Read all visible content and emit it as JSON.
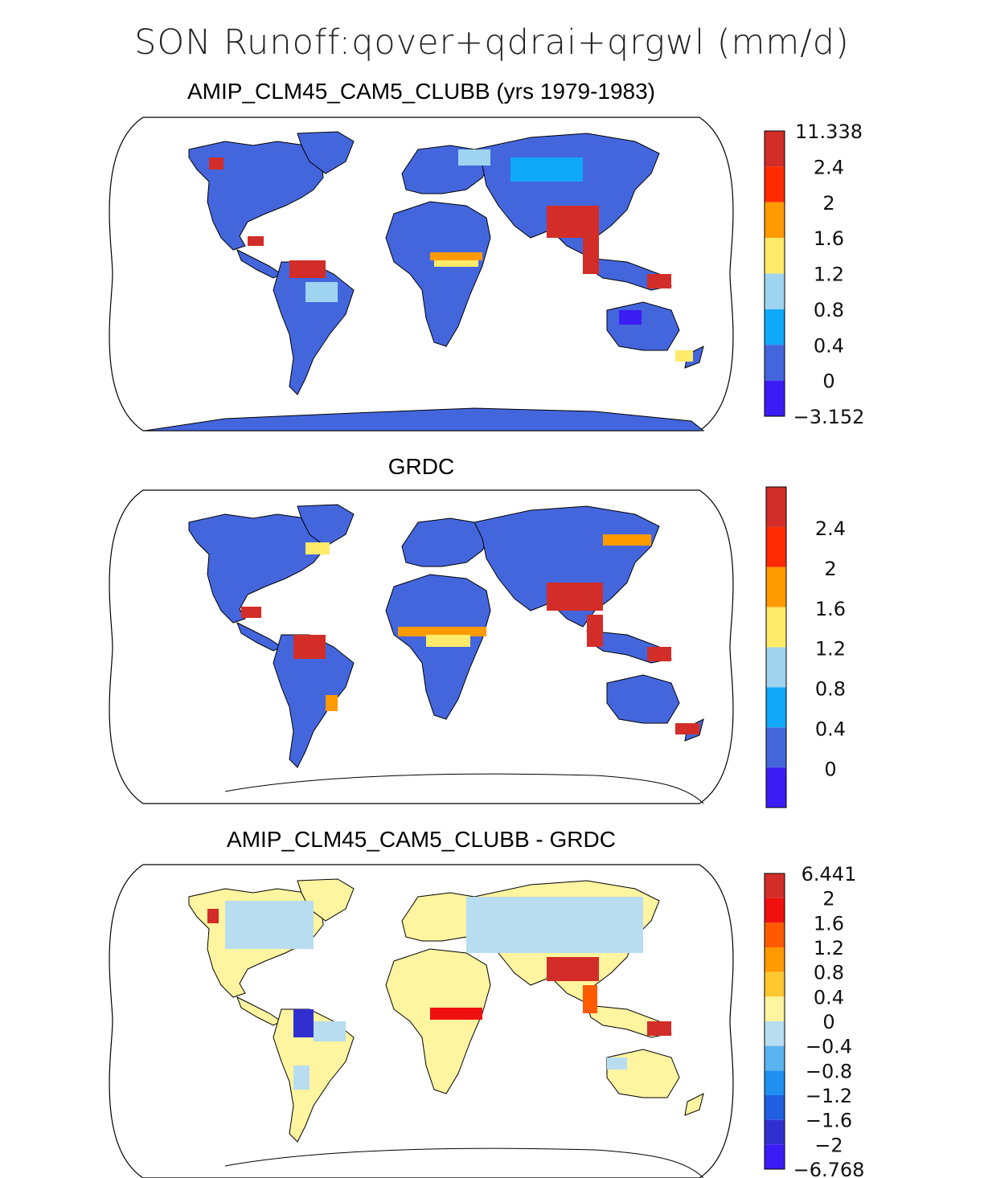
{
  "main_title": "SON Runoff:qover+qdrai+qrgwl (mm/d)",
  "colors": {
    "continent_fill": "#4466dd",
    "coast_line": "#000000",
    "map_border": "#000000"
  },
  "panels": [
    {
      "title": "AMIP_CLM45_CAM5_CLUBB (yrs 1979-1983)",
      "colorbar": {
        "labels": [
          "11.338",
          "2.4",
          "2",
          "1.6",
          "1.2",
          "0.8",
          "0.4",
          "0",
          "−3.152"
        ],
        "colors": [
          "#d22d28",
          "#ff2a00",
          "#ff9a00",
          "#ffea6a",
          "#9fd4f0",
          "#10a8f8",
          "#4466dd",
          "#3c1cf4"
        ]
      }
    },
    {
      "title": "GRDC",
      "colorbar": {
        "labels": [
          "2.4",
          "2",
          "1.6",
          "1.2",
          "0.8",
          "0.4",
          "0"
        ],
        "colors": [
          "#d22d28",
          "#ff2a00",
          "#ff9a00",
          "#ffea6a",
          "#9fd4f0",
          "#10a8f8",
          "#4466dd",
          "#3c1cf4"
        ]
      }
    },
    {
      "title": "AMIP_CLM45_CAM5_CLUBB - GRDC",
      "colorbar": {
        "labels": [
          "6.441",
          "2",
          "1.6",
          "1.2",
          "0.8",
          "0.4",
          "0",
          "−0.4",
          "−0.8",
          "−1.2",
          "−1.6",
          "−2",
          "−6.768"
        ],
        "colors": [
          "#d22d28",
          "#f01010",
          "#ff5a00",
          "#ff9a00",
          "#ffc830",
          "#fff4a0",
          "#b8dcf0",
          "#5ab4f0",
          "#2090f0",
          "#2060e0",
          "#3030d0",
          "#3c1cf4"
        ]
      }
    }
  ]
}
